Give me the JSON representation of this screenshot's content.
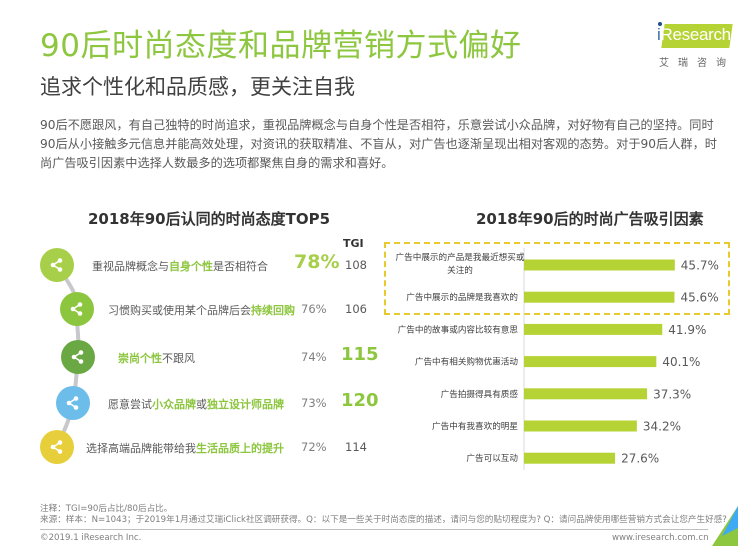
{
  "header": {
    "title": "90后时尚态度和品牌营销方式偏好",
    "subtitle": "追求个性化和品质感，更关注自我"
  },
  "logo": {
    "brand": "iResearch",
    "brand_i": "i",
    "brand_rest": "Research",
    "chinese": "艾瑞咨询"
  },
  "intro_text": "90后不愿跟风，有自己独特的时尚追求，重视品牌概念与自身个性是否相符，乐意尝试小众品牌，对好物有自己的坚持。同时90后从小接触多元信息并能高效处理，对资讯的获取精准、不盲从，对广告也逐渐呈现出相对客观的态势。对于90后人群，时尚广告吸引因素中选择人数最多的选项都聚焦自身的需求和喜好。",
  "left_panel": {
    "title": "2018年90后认同的时尚态度TOP5",
    "tgi_header": "TGI",
    "items": [
      {
        "parts": [
          {
            "t": "重视品牌概念与",
            "h": false
          },
          {
            "t": "自身个性",
            "h": true
          },
          {
            "t": "是否相符合",
            "h": false
          }
        ],
        "percent": "78%",
        "tgi": "108",
        "color": "#a7cf4a",
        "icon": "share-icon"
      },
      {
        "parts": [
          {
            "t": "习惯购买或使用某个品牌后会",
            "h": false
          },
          {
            "t": "持续回购",
            "h": true
          }
        ],
        "percent": "76%",
        "tgi": "106",
        "color": "#8cc63f",
        "icon": "share-icon"
      },
      {
        "parts": [
          {
            "t": "崇尚个性",
            "h": true
          },
          {
            "t": "不跟风",
            "h": false
          }
        ],
        "percent": "74%",
        "tgi": "115",
        "color": "#6aa843",
        "icon": "share-icon"
      },
      {
        "parts": [
          {
            "t": "愿意尝试",
            "h": false
          },
          {
            "t": "小众品牌",
            "h": true
          },
          {
            "t": "或",
            "h": false
          },
          {
            "t": "独立设计师品牌",
            "h": true
          }
        ],
        "percent": "73%",
        "tgi": "120",
        "color": "#6cbdea",
        "icon": "share-icon"
      },
      {
        "parts": [
          {
            "t": "选择高端品牌能带给我",
            "h": false
          },
          {
            "t": "生活品质上的提升",
            "h": true
          }
        ],
        "percent": "72%",
        "tgi": "114",
        "color": "#e6cf3a",
        "icon": "share-icon"
      }
    ]
  },
  "chart_data": {
    "type": "bar",
    "orientation": "horizontal",
    "title": "2018年90后的时尚广告吸引因素",
    "categories": [
      "广告中展示的产品是我最近想买或关注的",
      "广告中展示的品牌是我喜欢的",
      "广告中的故事或内容比较有意思",
      "广告中有相关购物优惠活动",
      "广告拍摄得具有质感",
      "广告中有我喜欢的明星",
      "广告可以互动"
    ],
    "category_lines": [
      [
        "广告中展示的产品是我最近想买或",
        "关注的"
      ],
      [
        "广告中展示的品牌是我喜欢的"
      ],
      [
        "广告中的故事或内容比较有意思"
      ],
      [
        "广告中有相关购物优惠活动"
      ],
      [
        "广告拍摄得具有质感"
      ],
      [
        "广告中有我喜欢的明星"
      ],
      [
        "广告可以互动"
      ]
    ],
    "values": [
      45.7,
      45.6,
      41.9,
      40.1,
      37.3,
      34.2,
      27.6
    ],
    "labels": [
      "45.7%",
      "45.6%",
      "41.9%",
      "40.1%",
      "37.3%",
      "34.2%",
      "27.6%"
    ],
    "unit": "%",
    "xlim": [
      0,
      60
    ],
    "bar_color": "#b5d334",
    "highlight_box_color": "#e8c92e",
    "highlighted_categories": 2
  },
  "footer": {
    "note": "注释：TGI=90后占比/80后占比。",
    "source": "来源：样本：N=1043；于2019年1月通过艾瑞iClick社区调研获得。Q：以下是一些关于时尚态度的描述，请问与您的贴切程度为? Q：请问品牌使用哪些营销方式会让您产生好感?",
    "copyright": "©2019.1 iResearch Inc.",
    "website": "www.iresearch.com.cn"
  },
  "colors": {
    "brand_green": "#8dc63f",
    "title_dark": "#333333"
  }
}
